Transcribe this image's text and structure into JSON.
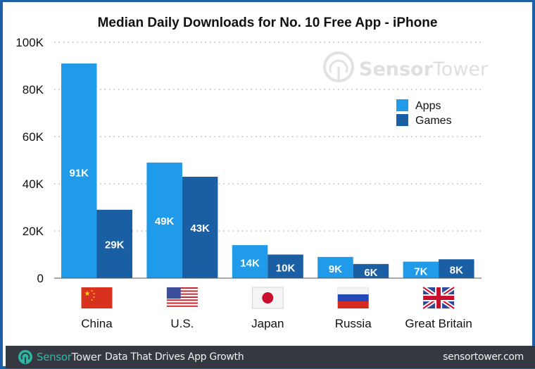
{
  "chart_data": {
    "type": "bar",
    "title": "Median Daily Downloads for No. 10 Free App - iPhone",
    "xlabel": "",
    "ylabel": "",
    "categories": [
      "China",
      "U.S.",
      "Japan",
      "Russia",
      "Great Britain"
    ],
    "series": [
      {
        "name": "Apps",
        "color": "#1f9bea",
        "values": [
          91000,
          49000,
          14000,
          9000,
          7000
        ],
        "labels": [
          "91K",
          "49K",
          "14K",
          "9K",
          "7K"
        ]
      },
      {
        "name": "Games",
        "color": "#1a5ea4",
        "values": [
          29000,
          43000,
          10000,
          6000,
          8000
        ],
        "labels": [
          "29K",
          "43K",
          "10K",
          "6K",
          "8K"
        ]
      }
    ],
    "ylim": [
      0,
      100000
    ],
    "yticks": [
      0,
      20000,
      40000,
      60000,
      80000,
      100000
    ],
    "ytick_labels": [
      "0",
      "20K",
      "40K",
      "60K",
      "80K",
      "100K"
    ],
    "grid": true,
    "legend_position": "right",
    "category_flags": [
      "china-flag-icon",
      "us-flag-icon",
      "japan-flag-icon",
      "russia-flag-icon",
      "uk-flag-icon"
    ]
  },
  "watermark": {
    "part1": "Sensor",
    "part2": "Tower"
  },
  "footer": {
    "brand_part1": "Sensor",
    "brand_part2": "Tower",
    "tagline": "Data That Drives App Growth",
    "website": "sensortower.com"
  },
  "colors": {
    "accent_teal": "#2fb7a5",
    "frame_blue": "#1f5fa8",
    "footer_bg": "#353841"
  }
}
